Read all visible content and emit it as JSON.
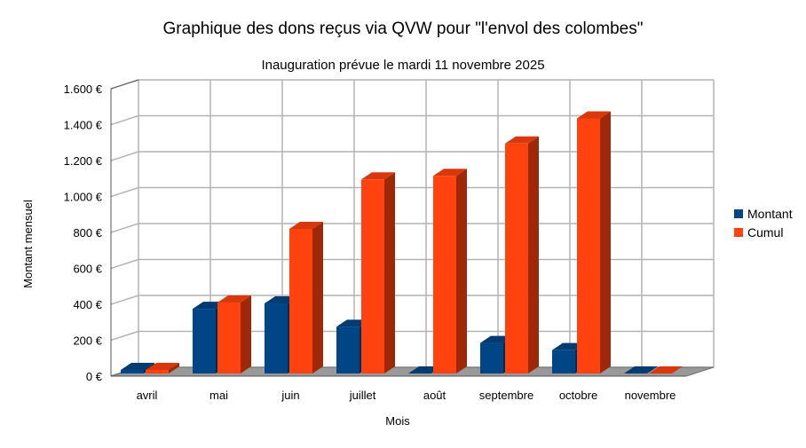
{
  "chart_data": {
    "type": "bar",
    "title": "Graphique des dons reçus via QVW pour \"l'envol des colombes\"",
    "subtitle": "Inauguration prévue le mardi 11 novembre 2025",
    "xlabel": "Mois",
    "ylabel": "Montant mensuel",
    "categories": [
      "avril",
      "mai",
      "juin",
      "juillet",
      "août",
      "septembre",
      "octobre",
      "novembre"
    ],
    "series": [
      {
        "name": "Montant",
        "color": "#004586",
        "values": [
          20,
          360,
          390,
          260,
          0,
          170,
          130,
          0
        ]
      },
      {
        "name": "Cumul",
        "color": "#ff420e",
        "values": [
          20,
          395,
          805,
          1080,
          1100,
          1280,
          1420,
          0
        ]
      }
    ],
    "ylim": [
      0,
      1600
    ],
    "yticks": [
      0,
      200,
      400,
      600,
      800,
      1000,
      1200,
      1400,
      1600
    ],
    "ytick_labels": [
      "0 €",
      "200 €",
      "400 €",
      "600 €",
      "800 €",
      "1.000 €",
      "1.200 €",
      "1.400 €",
      "1.600 €"
    ],
    "grid": true,
    "legend": "right",
    "style": "3d"
  }
}
